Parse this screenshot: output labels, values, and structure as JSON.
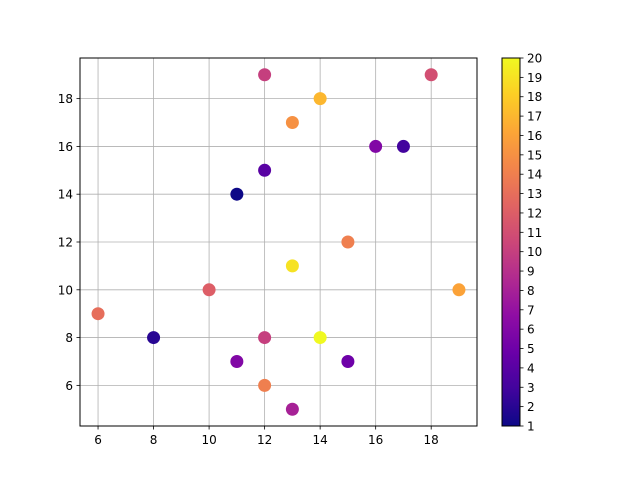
{
  "chart_data": {
    "type": "scatter",
    "xlim": [
      5.35,
      19.65
    ],
    "ylim": [
      4.3,
      19.7
    ],
    "x_ticks": [
      6,
      8,
      10,
      12,
      14,
      16,
      18
    ],
    "y_ticks": [
      6,
      8,
      10,
      12,
      14,
      16,
      18
    ],
    "grid": true,
    "colormap": "plasma",
    "colorbar": {
      "min": 1,
      "max": 20,
      "ticks": [
        1,
        2,
        3,
        4,
        5,
        6,
        7,
        8,
        9,
        10,
        11,
        12,
        13,
        14,
        15,
        16,
        17,
        18,
        19,
        20
      ]
    },
    "points": [
      {
        "x": 12,
        "y": 19,
        "c": 10
      },
      {
        "x": 18,
        "y": 19,
        "c": 11
      },
      {
        "x": 14,
        "y": 18,
        "c": 17
      },
      {
        "x": 13,
        "y": 17,
        "c": 15
      },
      {
        "x": 16,
        "y": 16,
        "c": 6
      },
      {
        "x": 17,
        "y": 16,
        "c": 3
      },
      {
        "x": 12,
        "y": 15,
        "c": 4
      },
      {
        "x": 11,
        "y": 14,
        "c": 1
      },
      {
        "x": 15,
        "y": 12,
        "c": 14
      },
      {
        "x": 13,
        "y": 11,
        "c": 19
      },
      {
        "x": 10,
        "y": 10,
        "c": 12
      },
      {
        "x": 19,
        "y": 10,
        "c": 16
      },
      {
        "x": 6,
        "y": 9,
        "c": 13
      },
      {
        "x": 8,
        "y": 8,
        "c": 2
      },
      {
        "x": 12,
        "y": 8,
        "c": 10
      },
      {
        "x": 14,
        "y": 8,
        "c": 20
      },
      {
        "x": 11,
        "y": 7,
        "c": 6
      },
      {
        "x": 15,
        "y": 7,
        "c": 5
      },
      {
        "x": 12,
        "y": 6,
        "c": 14
      },
      {
        "x": 13,
        "y": 5,
        "c": 8
      }
    ]
  }
}
